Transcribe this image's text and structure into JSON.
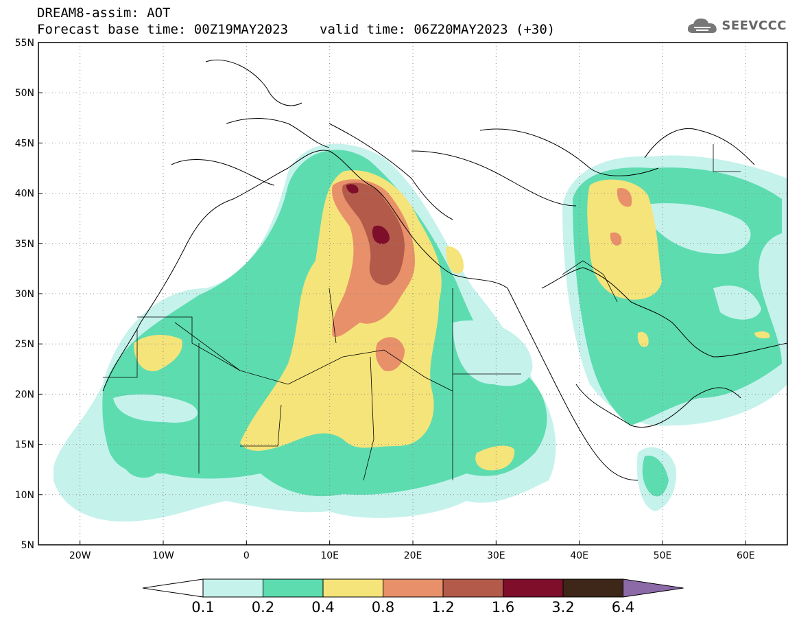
{
  "title": {
    "line1": "DREAM8-assim: AOT",
    "base_time": "Forecast base time: 00Z19MAY2023",
    "valid_time": "valid time: 06Z20MAY2023 (+30)"
  },
  "logo": {
    "text": "SEEVCCC",
    "icon": "cloud-icon"
  },
  "map": {
    "lon_range": [
      -25,
      65
    ],
    "lat_range": [
      5,
      55
    ],
    "lat_ticks": [
      "55N",
      "50N",
      "45N",
      "40N",
      "35N",
      "30N",
      "25N",
      "20N",
      "15N",
      "10N",
      "5N"
    ],
    "lon_ticks": [
      "20W",
      "10W",
      "0",
      "10E",
      "20E",
      "30E",
      "40E",
      "50E",
      "60E"
    ],
    "gridlines": "dotted"
  },
  "colorbar": {
    "levels": [
      "0.1",
      "0.2",
      "0.4",
      "0.8",
      "1.2",
      "1.6",
      "3.2",
      "6.4"
    ],
    "colors": [
      "#c6f2ec",
      "#5ddcb0",
      "#f5e47a",
      "#e8906a",
      "#b35a4a",
      "#7e0e2a",
      "#3e2618",
      "#8c6aa8"
    ]
  }
}
